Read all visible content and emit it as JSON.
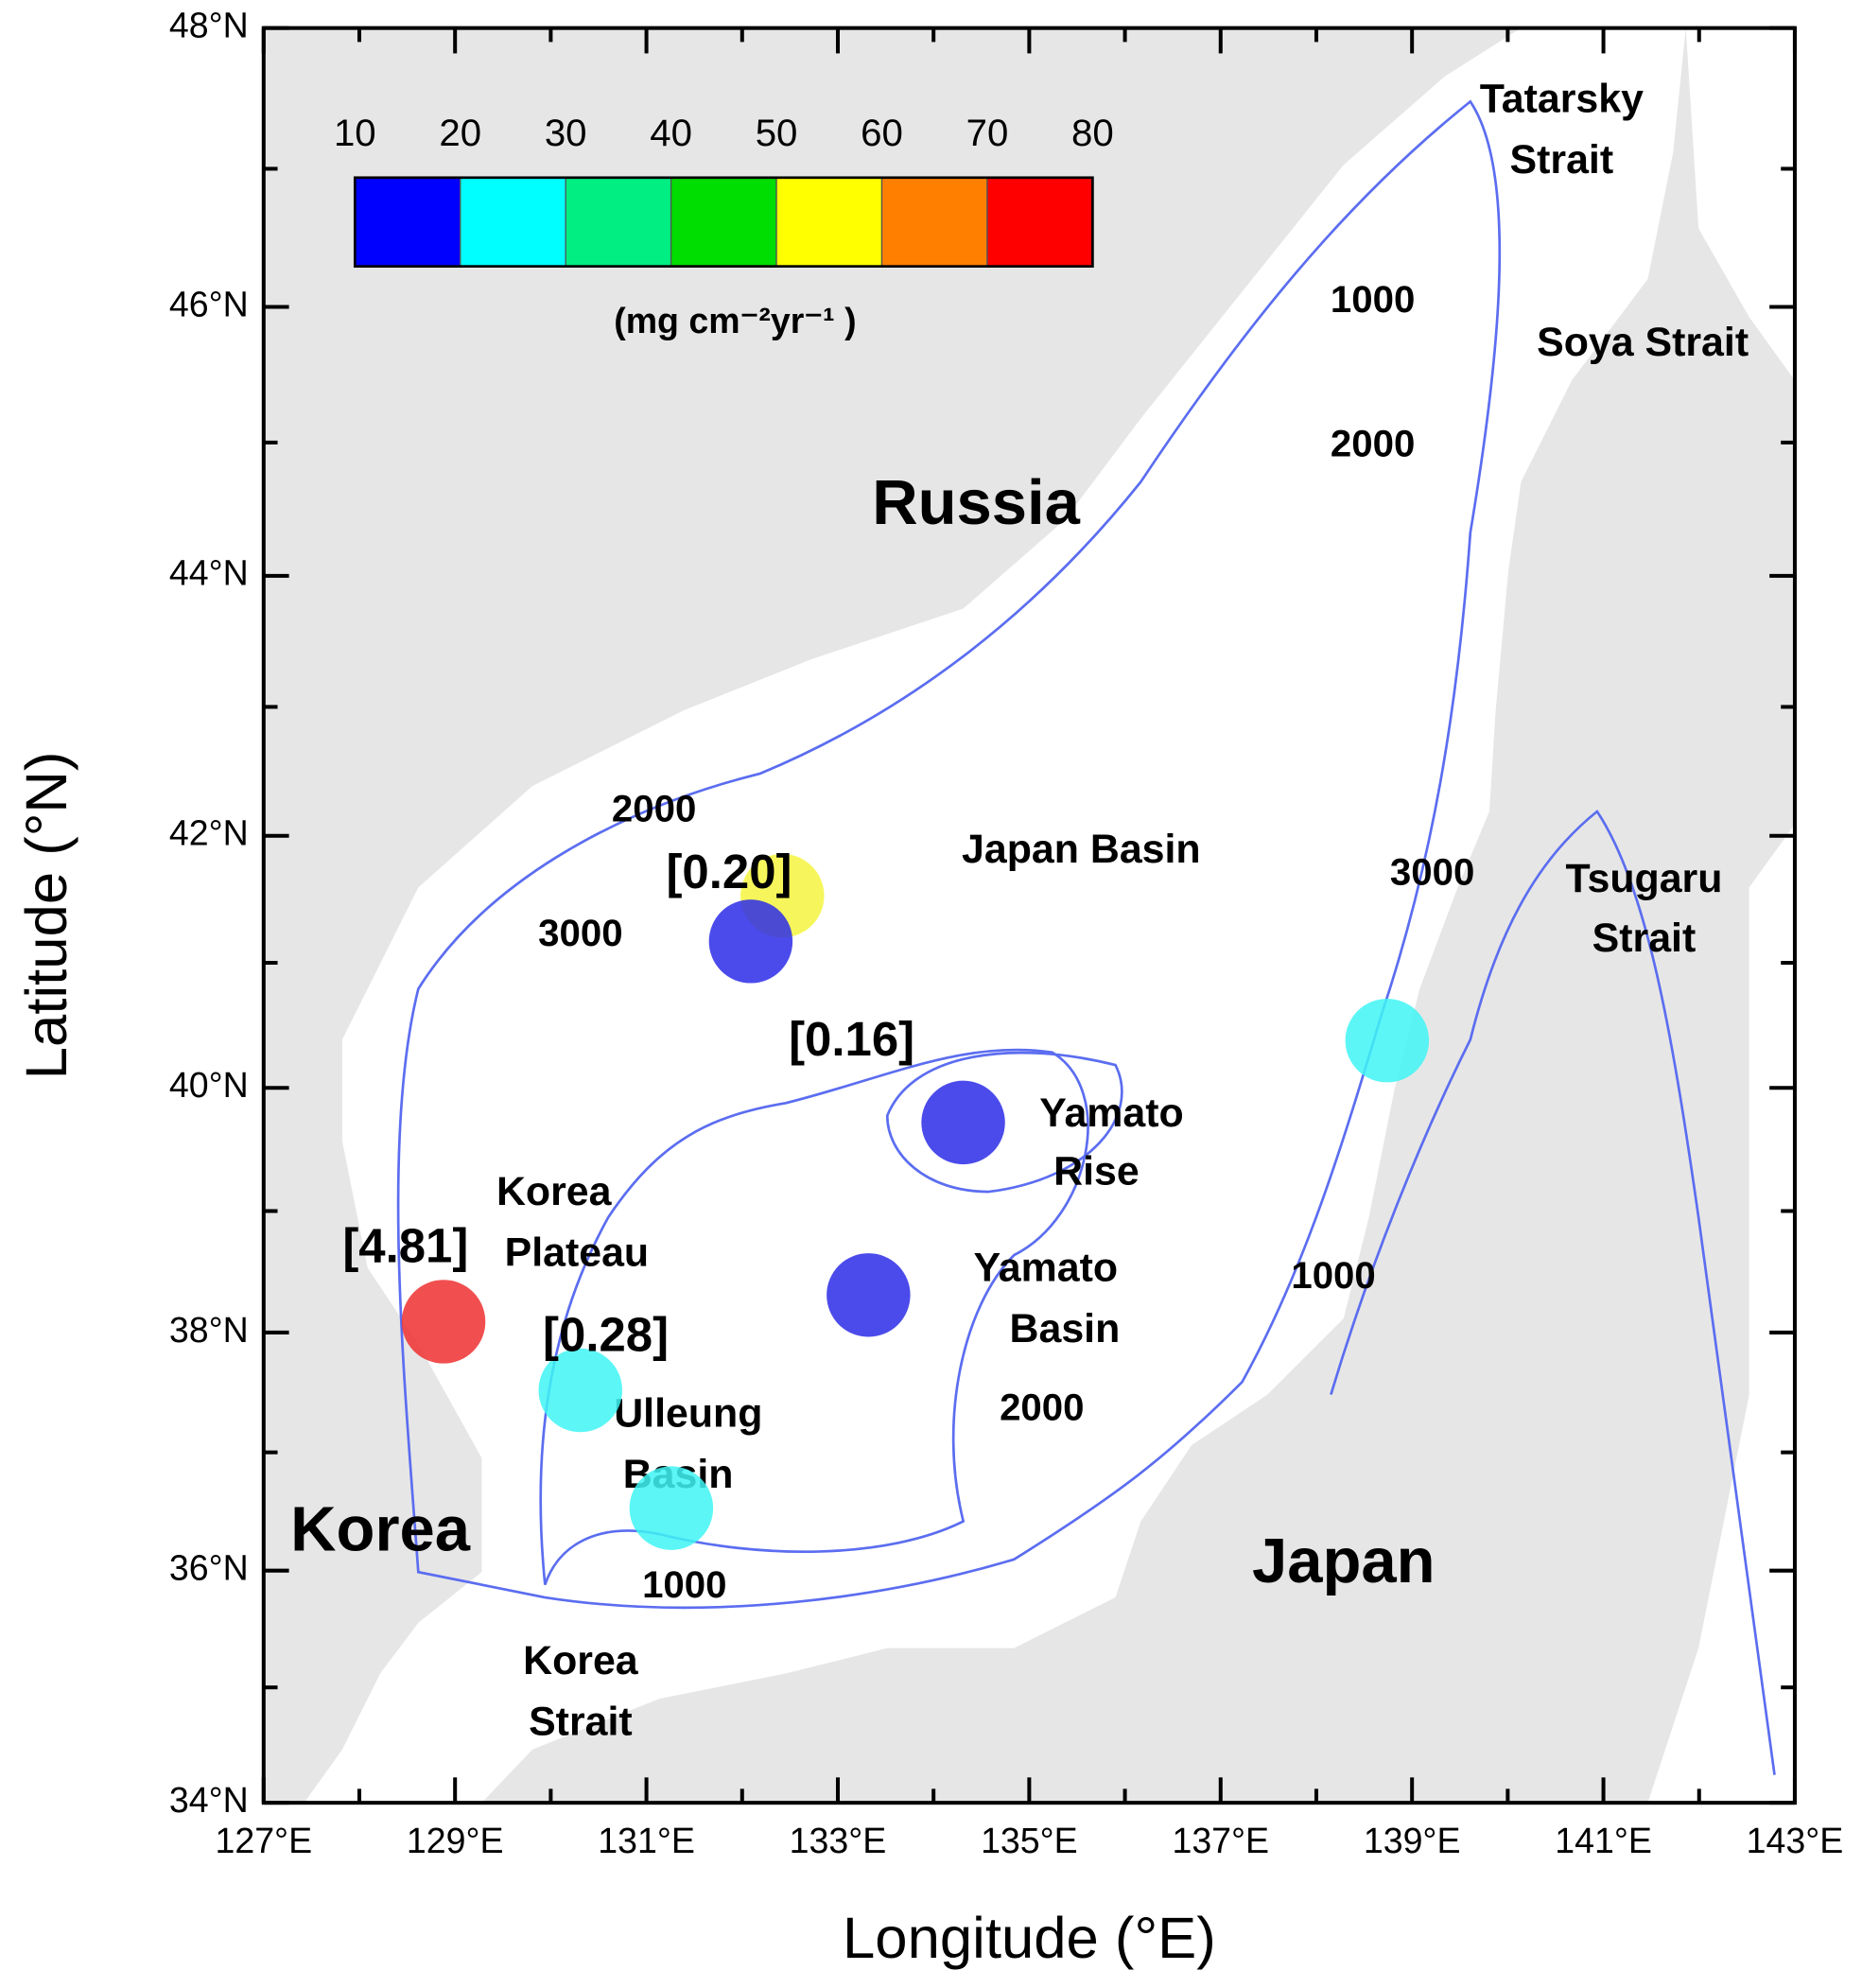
{
  "map": {
    "projection": "mercator",
    "land_color": "#e6e6e6",
    "contour_color": "#5b6df0",
    "xlabel": "Longitude (°E)",
    "ylabel": "Latitude (°N)",
    "xlim": [
      127,
      143
    ],
    "ylim": [
      34,
      48
    ],
    "xticks": [
      {
        "value": 127,
        "label": "127°E"
      },
      {
        "value": 129,
        "label": "129°E"
      },
      {
        "value": 131,
        "label": "131°E"
      },
      {
        "value": 133,
        "label": "133°E"
      },
      {
        "value": 135,
        "label": "135°E"
      },
      {
        "value": 137,
        "label": "137°E"
      },
      {
        "value": 139,
        "label": "139°E"
      },
      {
        "value": 141,
        "label": "141°E"
      },
      {
        "value": 143,
        "label": "143°E"
      }
    ],
    "yticks": [
      {
        "value": 34,
        "label": "34°N"
      },
      {
        "value": 36,
        "label": "36°N"
      },
      {
        "value": 38,
        "label": "38°N"
      },
      {
        "value": 40,
        "label": "40°N"
      },
      {
        "value": 42,
        "label": "42°N"
      },
      {
        "value": 44,
        "label": "44°N"
      },
      {
        "value": 46,
        "label": "46°N"
      },
      {
        "value": 48,
        "label": "48°N"
      }
    ],
    "x_minor_ticks": [
      128,
      130,
      132,
      134,
      136,
      138,
      140,
      142
    ],
    "y_minor_ticks": [
      35,
      37,
      39,
      41,
      43,
      45,
      47
    ],
    "colorbar": {
      "ticks": [
        10,
        20,
        30,
        40,
        50,
        60,
        70,
        80
      ],
      "colors": [
        "#0000ff",
        "#00ffff",
        "#00ee82",
        "#00dd00",
        "#ffff00",
        "#ff8000",
        "#ff0000"
      ],
      "label": "(mg cm⁻²yr⁻¹ )"
    },
    "places": [
      {
        "lines": [
          "Russia"
        ]
      },
      {
        "lines": [
          "Korea"
        ]
      },
      {
        "lines": [
          "Japan"
        ]
      },
      {
        "lines": [
          "Japan Basin"
        ]
      },
      {
        "lines": [
          "Tatarsky",
          "Strait"
        ]
      },
      {
        "lines": [
          "Soya Strait"
        ]
      },
      {
        "lines": [
          "Tsugaru",
          "Strait"
        ]
      },
      {
        "lines": [
          "Yamato",
          "Rise"
        ]
      },
      {
        "lines": [
          "Korea",
          "Plateau"
        ]
      },
      {
        "lines": [
          "Yamato",
          "Basin"
        ]
      },
      {
        "lines": [
          "Ulleung",
          "Basin"
        ]
      },
      {
        "lines": [
          "Korea",
          "Strait"
        ]
      }
    ],
    "depth_labels": [
      "1000",
      "2000",
      "2000",
      "3000",
      "3000",
      "1000",
      "2000",
      "1000"
    ],
    "stations": [
      {
        "lon": 128.88,
        "lat": 38.09,
        "color": "#ee3030",
        "label": "[4.81]"
      },
      {
        "lon": 130.31,
        "lat": 37.52,
        "color": "#40f4f4",
        "label": "[0.28]"
      },
      {
        "lon": 131.26,
        "lat": 36.53,
        "color": "#40f4f4"
      },
      {
        "lon": 133.32,
        "lat": 38.31,
        "color": "#2c2ce8"
      },
      {
        "lon": 134.31,
        "lat": 39.72,
        "color": "#2c2ce8",
        "label": "[0.16]"
      },
      {
        "lon": 132.42,
        "lat": 41.53,
        "color": "#f4f440",
        "label": "[0.20]"
      },
      {
        "lon": 132.09,
        "lat": 41.17,
        "color": "#2c2ce8"
      },
      {
        "lon": 138.74,
        "lat": 40.38,
        "color": "#40f4f4"
      }
    ]
  }
}
